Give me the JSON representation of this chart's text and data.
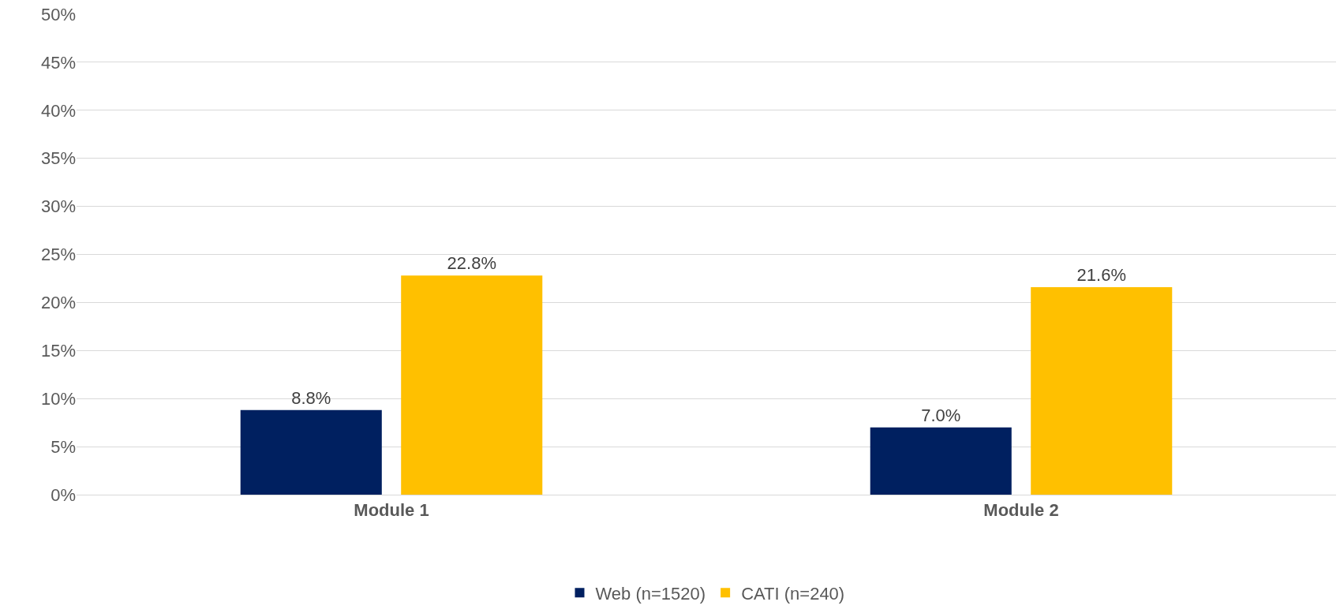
{
  "chart_data": {
    "type": "bar",
    "categories": [
      "Module 1",
      "Module 2"
    ],
    "series": [
      {
        "name": "Web (n=1520)",
        "color": "#002060",
        "values": [
          8.8,
          7.0
        ],
        "value_labels": [
          "8.8%",
          "7.0%"
        ]
      },
      {
        "name": "CATI (n=240)",
        "color": "#ffc000",
        "values": [
          22.8,
          21.6
        ],
        "value_labels": [
          "22.8%",
          "21.6%"
        ]
      }
    ],
    "ylim": [
      0,
      50
    ],
    "yticks": [
      {
        "value": 0,
        "label": "0%"
      },
      {
        "value": 5,
        "label": "5%"
      },
      {
        "value": 10,
        "label": "10%"
      },
      {
        "value": 15,
        "label": "15%"
      },
      {
        "value": 20,
        "label": "20%"
      },
      {
        "value": 25,
        "label": "25%"
      },
      {
        "value": 30,
        "label": "30%"
      },
      {
        "value": 35,
        "label": "35%"
      },
      {
        "value": 40,
        "label": "40%"
      },
      {
        "value": 45,
        "label": "45%"
      },
      {
        "value": 50,
        "label": "50%"
      }
    ],
    "grid": "y",
    "legend": "bottom"
  }
}
